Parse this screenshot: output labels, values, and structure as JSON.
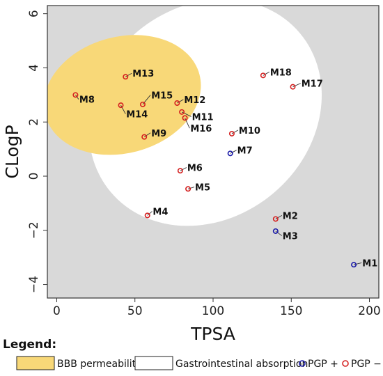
{
  "chart_data": {
    "type": "scatter",
    "xlabel": "TPSA",
    "ylabel": "CLogP",
    "xlim": [
      -6,
      206
    ],
    "ylim": [
      -4.5,
      6.3
    ],
    "x_ticks": [
      0,
      50,
      100,
      150,
      200
    ],
    "y_ticks": [
      -4,
      -2,
      0,
      2,
      4,
      6
    ],
    "y_tick_labels": [
      "−4",
      "−2",
      "0",
      "2",
      "4",
      "6"
    ],
    "background_color": "#d9d9d9",
    "regions": [
      {
        "name": "Gastrointestinal absorption",
        "color": "#ffffff",
        "cx": 95,
        "cy": 2.35,
        "rx": 79,
        "ry": 3.9,
        "rotation_deg": -40
      },
      {
        "name": "BBB permeability",
        "color": "#f8d878",
        "cx": 42,
        "cy": 3.0,
        "rx": 51,
        "ry": 2.15,
        "rotation_deg": -15
      }
    ],
    "pgp_colors": {
      "positive": "#1a1aa8",
      "negative": "#d42020"
    },
    "points": [
      {
        "label": "M1",
        "x": 190,
        "y": -3.27,
        "pgp": "positive",
        "lx": 195,
        "ly": -3.2
      },
      {
        "label": "M2",
        "x": 140,
        "y": -1.58,
        "pgp": "negative",
        "lx": 144,
        "ly": -1.45
      },
      {
        "label": "M3",
        "x": 140,
        "y": -2.03,
        "pgp": "positive",
        "lx": 144,
        "ly": -2.2
      },
      {
        "label": "M4",
        "x": 58,
        "y": -1.45,
        "pgp": "negative",
        "lx": 61,
        "ly": -1.3
      },
      {
        "label": "M5",
        "x": 84,
        "y": -0.47,
        "pgp": "negative",
        "lx": 88,
        "ly": -0.4
      },
      {
        "label": "M6",
        "x": 79,
        "y": 0.2,
        "pgp": "negative",
        "lx": 83,
        "ly": 0.32
      },
      {
        "label": "M7",
        "x": 111,
        "y": 0.84,
        "pgp": "positive",
        "lx": 115,
        "ly": 0.96
      },
      {
        "label": "M8",
        "x": 12,
        "y": 3.0,
        "pgp": "negative",
        "lx": 14,
        "ly": 2.84
      },
      {
        "label": "M9",
        "x": 56,
        "y": 1.45,
        "pgp": "negative",
        "lx": 60,
        "ly": 1.6
      },
      {
        "label": "M10",
        "x": 112,
        "y": 1.57,
        "pgp": "negative",
        "lx": 116,
        "ly": 1.7
      },
      {
        "label": "M11",
        "x": 80,
        "y": 2.37,
        "pgp": "negative",
        "lx": 86,
        "ly": 2.2
      },
      {
        "label": "M12",
        "x": 77,
        "y": 2.7,
        "pgp": "negative",
        "lx": 81,
        "ly": 2.83
      },
      {
        "label": "M13",
        "x": 44,
        "y": 3.67,
        "pgp": "negative",
        "lx": 48,
        "ly": 3.8
      },
      {
        "label": "M14",
        "x": 41,
        "y": 2.62,
        "pgp": "negative",
        "lx": 44,
        "ly": 2.3
      },
      {
        "label": "M15",
        "x": 55,
        "y": 2.65,
        "pgp": "negative",
        "lx": 60,
        "ly": 3.0
      },
      {
        "label": "M16",
        "x": 82,
        "y": 2.15,
        "pgp": "negative",
        "lx": 85,
        "ly": 1.77
      },
      {
        "label": "M17",
        "x": 151,
        "y": 3.3,
        "pgp": "negative",
        "lx": 156,
        "ly": 3.43
      },
      {
        "label": "M18",
        "x": 132,
        "y": 3.72,
        "pgp": "negative",
        "lx": 136,
        "ly": 3.85
      }
    ],
    "legend": {
      "title": "Legend:",
      "items": [
        {
          "label": "BBB permeability",
          "kind": "box",
          "color": "#f8d878"
        },
        {
          "label": "Gastrointestinal absorption",
          "kind": "box",
          "color": "#ffffff"
        },
        {
          "label": "PGP +",
          "kind": "circle",
          "color": "#1a1aa8"
        },
        {
          "label": "PGP −",
          "kind": "circle",
          "color": "#d42020"
        }
      ]
    }
  }
}
